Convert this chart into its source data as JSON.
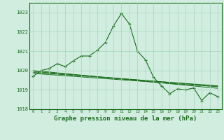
{
  "title": "Graphe pression niveau de la mer (hPa)",
  "background_color": "#d0ede0",
  "grid_color": "#a8d4bc",
  "line_color": "#1a6b1a",
  "x_values": [
    0,
    1,
    2,
    3,
    4,
    5,
    6,
    7,
    8,
    9,
    10,
    11,
    12,
    13,
    14,
    15,
    16,
    17,
    18,
    19,
    20,
    21,
    22,
    23
  ],
  "main_series": [
    1019.7,
    1020.0,
    1020.1,
    1020.35,
    1020.2,
    1020.5,
    1020.75,
    1020.75,
    1021.05,
    1021.45,
    1022.3,
    1022.95,
    1022.4,
    1021.0,
    1020.55,
    1019.65,
    1019.2,
    1018.8,
    1019.05,
    1019.0,
    1019.1,
    1018.45,
    1018.85,
    1018.65
  ],
  "trend1": [
    1019.95,
    1019.92,
    1019.88,
    1019.85,
    1019.82,
    1019.78,
    1019.75,
    1019.72,
    1019.68,
    1019.65,
    1019.62,
    1019.58,
    1019.55,
    1019.52,
    1019.48,
    1019.45,
    1019.42,
    1019.38,
    1019.35,
    1019.32,
    1019.28,
    1019.25,
    1019.22,
    1019.18
  ],
  "trend2": [
    1019.9,
    1019.87,
    1019.84,
    1019.81,
    1019.78,
    1019.75,
    1019.72,
    1019.69,
    1019.66,
    1019.63,
    1019.6,
    1019.57,
    1019.54,
    1019.51,
    1019.48,
    1019.45,
    1019.42,
    1019.39,
    1019.36,
    1019.33,
    1019.3,
    1019.27,
    1019.24,
    1019.21
  ],
  "trend3": [
    1020.0,
    1019.96,
    1019.92,
    1019.88,
    1019.84,
    1019.8,
    1019.76,
    1019.72,
    1019.68,
    1019.64,
    1019.6,
    1019.56,
    1019.52,
    1019.48,
    1019.44,
    1019.4,
    1019.36,
    1019.32,
    1019.28,
    1019.24,
    1019.2,
    1019.16,
    1019.12,
    1019.08
  ],
  "trend4": [
    1019.85,
    1019.82,
    1019.79,
    1019.76,
    1019.73,
    1019.7,
    1019.67,
    1019.64,
    1019.61,
    1019.58,
    1019.55,
    1019.52,
    1019.49,
    1019.46,
    1019.43,
    1019.4,
    1019.37,
    1019.34,
    1019.31,
    1019.28,
    1019.25,
    1019.22,
    1019.19,
    1019.16
  ],
  "ylim_min": 1018.0,
  "ylim_max": 1023.5,
  "yticks": [
    1018,
    1019,
    1020,
    1021,
    1022,
    1023
  ],
  "title_fontsize": 6.5
}
